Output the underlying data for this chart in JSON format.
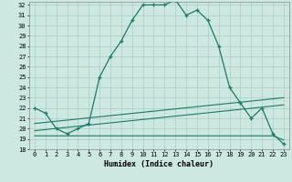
{
  "xlabel": "Humidex (Indice chaleur)",
  "bg_color": "#cce8e0",
  "grid_color": "#aaccc4",
  "line_color": "#1a7a6a",
  "x_min": 0,
  "x_max": 23,
  "y_min": 18,
  "y_max": 32,
  "line1_x": [
    0,
    1,
    2,
    3,
    4,
    5,
    6,
    7,
    8,
    9,
    10,
    11,
    12,
    13,
    14,
    15,
    16,
    17,
    18,
    19,
    20,
    21,
    22,
    23
  ],
  "line1_y": [
    22.0,
    21.5,
    20.0,
    19.5,
    20.0,
    20.5,
    25.0,
    27.0,
    28.5,
    30.5,
    32.0,
    32.0,
    32.0,
    32.5,
    31.0,
    31.5,
    30.5,
    28.0,
    24.0,
    22.5,
    21.0,
    22.0,
    19.5,
    18.5
  ],
  "line2_x": [
    0,
    1,
    2,
    3,
    4,
    5,
    6,
    7,
    8,
    9,
    10,
    11,
    12,
    13,
    14,
    15,
    16,
    17,
    18,
    19,
    20,
    21,
    22,
    23
  ],
  "line2_y": [
    19.3,
    19.3,
    19.3,
    19.3,
    19.3,
    19.3,
    19.3,
    19.3,
    19.3,
    19.3,
    19.3,
    19.3,
    19.3,
    19.3,
    19.3,
    19.3,
    19.3,
    19.3,
    19.3,
    19.3,
    19.3,
    19.3,
    19.3,
    18.9
  ],
  "line3_x": [
    0,
    23
  ],
  "line3_y": [
    19.8,
    22.3
  ],
  "line4_x": [
    0,
    23
  ],
  "line4_y": [
    20.5,
    23.0
  ]
}
